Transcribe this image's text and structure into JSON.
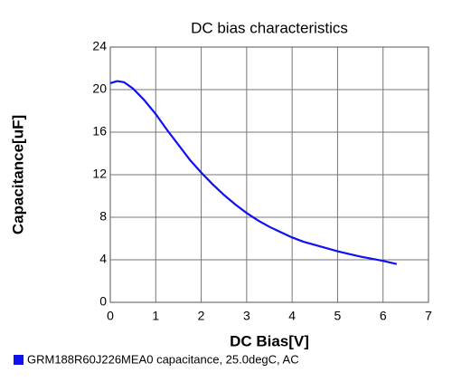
{
  "chart_data": {
    "type": "line",
    "title": "DC bias characteristics",
    "x_label": "DC Bias[V]",
    "y_label": "Capacitance[uF]",
    "x": [
      0,
      0.15,
      0.3,
      0.5,
      0.75,
      1,
      1.25,
      1.5,
      1.75,
      2,
      2.25,
      2.5,
      2.75,
      3,
      3.25,
      3.5,
      3.75,
      4,
      4.25,
      4.5,
      4.75,
      5,
      5.25,
      5.5,
      5.75,
      6,
      6.15,
      6.3
    ],
    "series": [
      {
        "name": "GRM188R60J226MEA0 capacitance, 25.0degC, AC",
        "color": "#1010f0",
        "values": [
          20.6,
          20.8,
          20.7,
          20.1,
          19.0,
          17.7,
          16.2,
          14.8,
          13.4,
          12.2,
          11.1,
          10.1,
          9.2,
          8.4,
          7.7,
          7.1,
          6.6,
          6.1,
          5.7,
          5.4,
          5.1,
          4.8,
          4.55,
          4.3,
          4.1,
          3.9,
          3.75,
          3.6
        ]
      }
    ],
    "xlim": [
      0,
      7
    ],
    "xticks": [
      0,
      1,
      2,
      3,
      4,
      5,
      6,
      7
    ],
    "ylim": [
      0,
      24
    ],
    "yticks": [
      0,
      4,
      8,
      12,
      16,
      20,
      24
    ],
    "grid": true
  }
}
